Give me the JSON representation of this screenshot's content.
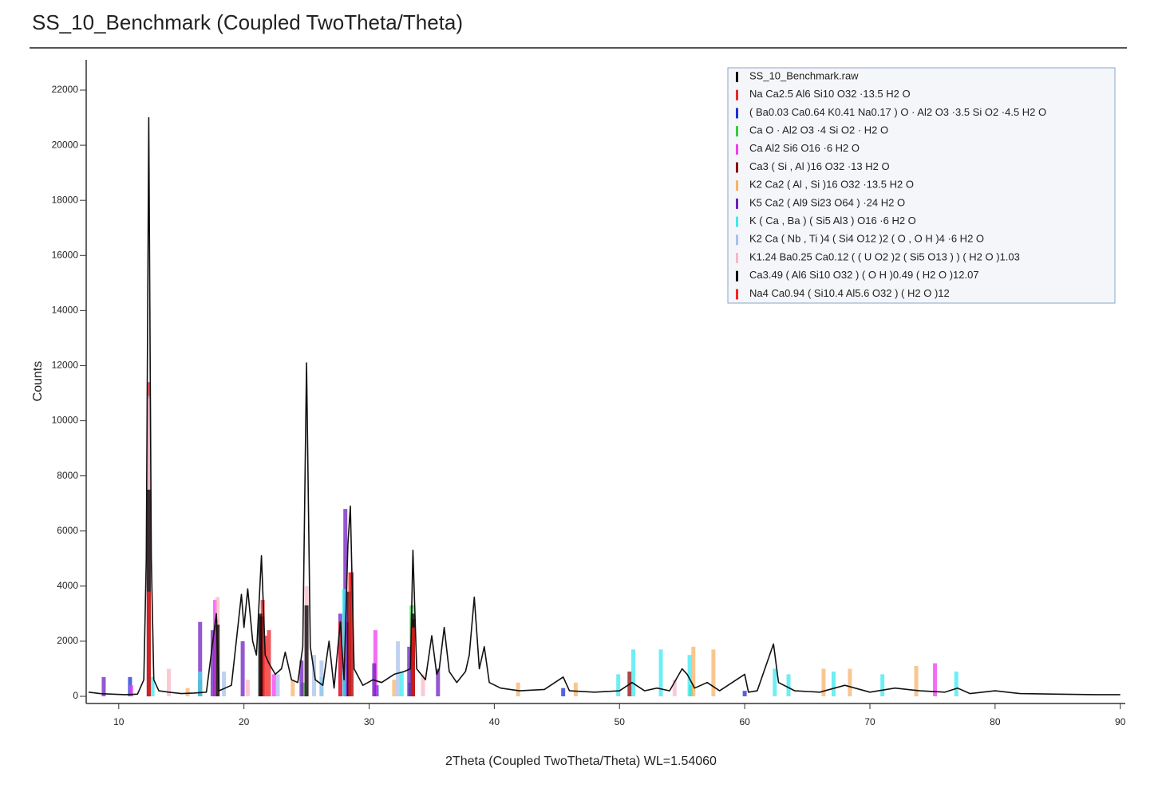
{
  "chart_data": {
    "type": "line",
    "title": "SS_10_Benchmark (Coupled TwoTheta/Theta)",
    "x_label": "2Theta (Coupled TwoTheta/Theta) WL=1.54060",
    "y_label": "Counts",
    "xlim": [
      7.4,
      90.4
    ],
    "ylim": [
      -260,
      23100
    ],
    "xticks": [
      10,
      20,
      30,
      40,
      50,
      60,
      70,
      80,
      90
    ],
    "yticks": [
      0,
      2000,
      4000,
      6000,
      8000,
      10000,
      12000,
      14000,
      16000,
      18000,
      20000,
      22000
    ],
    "legend": "upper right",
    "series": [
      {
        "name": "SS_10_Benchmark.raw",
        "color": "#111111",
        "mark": "line",
        "x": [
          7.6,
          8.5,
          9.5,
          10.5,
          11.5,
          12.0,
          12.2,
          12.4,
          12.6,
          12.8,
          13.2,
          14,
          15,
          16,
          17,
          17.8,
          18,
          19,
          19.8,
          20,
          20.3,
          20.7,
          21,
          21.4,
          21.7,
          22,
          22.5,
          23,
          23.3,
          23.8,
          24.3,
          24.7,
          25.0,
          25.3,
          25.7,
          26.3,
          26.8,
          27.2,
          27.7,
          28.0,
          28.3,
          28.5,
          28.8,
          29.5,
          30.3,
          31,
          32,
          32.8,
          33.3,
          33.5,
          33.8,
          34.5,
          35,
          35.4,
          35.6,
          36,
          36.4,
          37,
          37.7,
          38.0,
          38.4,
          38.8,
          39.2,
          39.6,
          40.5,
          42,
          44,
          45.5,
          46,
          48,
          50,
          51,
          52,
          53,
          54,
          55,
          55.4,
          56,
          57,
          58,
          60,
          60.3,
          61,
          62.3,
          62.7,
          64,
          66,
          68,
          70,
          72,
          74,
          76,
          77,
          78,
          80,
          82,
          85,
          88,
          90
        ],
        "values": [
          150,
          100,
          80,
          60,
          80,
          600,
          5000,
          21000,
          5000,
          600,
          200,
          150,
          100,
          120,
          150,
          3000,
          200,
          400,
          3700,
          2500,
          3900,
          2000,
          1500,
          5100,
          1500,
          1200,
          800,
          1000,
          1600,
          600,
          500,
          1800,
          12100,
          1800,
          600,
          400,
          2000,
          300,
          2700,
          600,
          5500,
          6900,
          1000,
          400,
          600,
          500,
          800,
          900,
          1000,
          5300,
          1000,
          600,
          2200,
          800,
          1000,
          2500,
          900,
          500,
          900,
          1500,
          3600,
          1000,
          1800,
          500,
          300,
          200,
          250,
          700,
          200,
          150,
          200,
          500,
          200,
          300,
          200,
          1000,
          800,
          300,
          500,
          200,
          800,
          150,
          200,
          1900,
          500,
          200,
          150,
          400,
          150,
          300,
          200,
          150,
          300,
          100,
          200,
          100,
          80,
          60,
          60
        ]
      },
      {
        "name": "Na Ca2.5 Al6 Si10 O32 ·13.5 H2 O",
        "color": "#e8262b",
        "mark": "stick",
        "x": [
          12.4,
          17.8,
          21.5,
          22.0,
          28.3,
          33.5
        ],
        "values": [
          11400,
          2800,
          3500,
          2400,
          2700,
          2200
        ]
      },
      {
        "name": "( Ba0.03 Ca0.64 K0.41 Na0.17 ) O · Al2 O3 ·3.5 Si O2 ·4.5 H2 O",
        "color": "#1d2fd6",
        "mark": "stick",
        "x": [
          10.9,
          28.1,
          30.6,
          33.3,
          45.5,
          60
        ],
        "values": [
          700,
          1400,
          400,
          500,
          300,
          200
        ]
      },
      {
        "name": "Ca O · Al2 O3 ·4 Si O2 · H2 O",
        "color": "#2fcf3a",
        "mark": "stick",
        "x": [
          16.5,
          24.7,
          33.4,
          55.7
        ],
        "values": [
          600,
          500,
          3300,
          400
        ]
      },
      {
        "name": "Ca Al2 Si6 O16 ·6 H2 O",
        "color": "#f03cf0",
        "mark": "stick",
        "x": [
          11.0,
          17.7,
          22.4,
          28.3,
          30.5,
          75.2
        ],
        "values": [
          400,
          3500,
          800,
          1400,
          2400,
          1200
        ]
      },
      {
        "name": "Ca3 ( Si , Al )16 O32 ·13 H2 O",
        "color": "#8b0e0e",
        "mark": "stick",
        "x": [
          12.4,
          21.4,
          28.6,
          33.5,
          50.8
        ],
        "values": [
          6100,
          2900,
          4500,
          2800,
          900
        ]
      },
      {
        "name": "K2 Ca2 ( Al , Si )16 O32 ·13.5 H2 O",
        "color": "#f7b36b",
        "mark": "stick",
        "x": [
          15.5,
          23.9,
          32.0,
          41.9,
          46.5,
          55.9,
          57.5,
          66.3,
          68.4,
          73.7
        ],
        "values": [
          300,
          600,
          600,
          500,
          500,
          1800,
          1700,
          1000,
          1000,
          1100
        ]
      },
      {
        "name": "K5 Ca2 ( Al9 Si23 O64 ) ·24 H2 O",
        "color": "#6f1fc0",
        "mark": "stick",
        "x": [
          8.8,
          16.5,
          17.5,
          19.9,
          24.6,
          27.7,
          28.1,
          30.4,
          33.2,
          35.5
        ],
        "values": [
          700,
          2700,
          2400,
          2000,
          1300,
          3000,
          6800,
          1200,
          1800,
          1000
        ]
      },
      {
        "name": "K ( Ca , Ba ) ( Si5 Al3 ) O16 ·6 H2 O",
        "color": "#3ee8f2",
        "mark": "stick",
        "x": [
          12.7,
          16.5,
          26.2,
          28.0,
          32.6,
          49.9,
          51.1,
          53.3,
          55.6,
          62.4,
          63.5,
          67.1,
          71.0,
          76.9
        ],
        "values": [
          700,
          900,
          700,
          3900,
          900,
          800,
          1700,
          1700,
          1500,
          1000,
          800,
          900,
          800,
          900
        ]
      },
      {
        "name": "K2 Ca ( Nb , Ti )4 ( Si4 O12 )2 ( O , O H )4 ·6 H2 O",
        "color": "#a9c2ec",
        "mark": "stick",
        "x": [
          12.4,
          18.4,
          22.7,
          25.6,
          26.2,
          32.3
        ],
        "values": [
          10900,
          900,
          800,
          1500,
          1300,
          2000
        ]
      },
      {
        "name": "K1.24 Ba0.25 Ca0.12 ( ( U O2 )2 ( Si5 O13 ) ) ( H2 O )1.03",
        "color": "#f8b8c6",
        "mark": "stick",
        "x": [
          12.4,
          14.0,
          17.9,
          20.3,
          25.0,
          34.3,
          54.4
        ],
        "values": [
          10800,
          1000,
          3600,
          600,
          4000,
          800,
          600
        ]
      },
      {
        "name": "Ca3.49 ( Al6 Si10 O32 ) ( O H )0.49 ( H2 O )12.07",
        "color": "#000000",
        "mark": "stick",
        "x": [
          12.4,
          17.9,
          21.3,
          25.0,
          28.4,
          33.5
        ],
        "values": [
          7500,
          2600,
          3000,
          3300,
          3800,
          3000
        ]
      },
      {
        "name": "Na4 Ca0.94 ( Si10.4 Al5.6 O32 ) ( H2 O )12",
        "color": "#ff2020",
        "mark": "stick",
        "x": [
          12.4,
          21.7,
          27.7,
          28.5,
          33.5
        ],
        "values": [
          3800,
          2200,
          2700,
          4500,
          2500
        ]
      }
    ]
  }
}
